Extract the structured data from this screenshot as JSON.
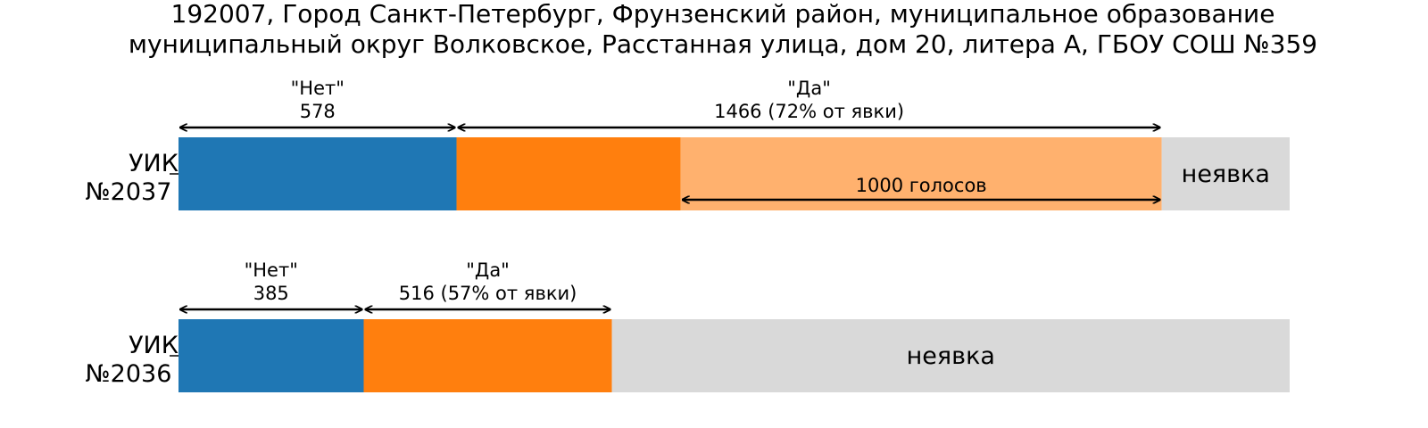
{
  "chart_data": {
    "type": "bar",
    "orientation": "horizontal-stacked",
    "title": "192007, Город Санкт-Петербург, Фрунзенский район, муниципальное образование муниципальный округ Волковское, Расстанная улица, дом 20, литера А, ГБОУ СОШ №359",
    "title_lines": [
      "192007, Город Санкт-Петербург, Фрунзенский район, муниципальное образование",
      "муниципальный округ Волковское, Расстанная улица, дом 20, литера А, ГБОУ СОШ №359"
    ],
    "colors": {
      "no": "#1f77b4",
      "yes": "#ff7f0e",
      "excess": "#ffb16e",
      "absent": "#d9d9d9"
    },
    "bars": [
      {
        "label_lines": [
          "УИК",
          "№2037"
        ],
        "no": 578,
        "yes": 1466,
        "yes_excess": 1000,
        "total": 2310,
        "no_label": [
          "\"Нет\"",
          "578"
        ],
        "yes_label": [
          "\"Да\"",
          "1466 (72% от явки)"
        ],
        "excess_label": "1000 голосов",
        "absent_label": "неявка"
      },
      {
        "label_lines": [
          "УИК",
          "№2036"
        ],
        "no": 385,
        "yes": 516,
        "yes_excess": 0,
        "total": 2310,
        "no_label": [
          "\"Нет\"",
          "385"
        ],
        "yes_label": [
          "\"Да\"",
          "516 (57% от явки)"
        ],
        "excess_label": "",
        "absent_label": "неявка"
      }
    ]
  }
}
